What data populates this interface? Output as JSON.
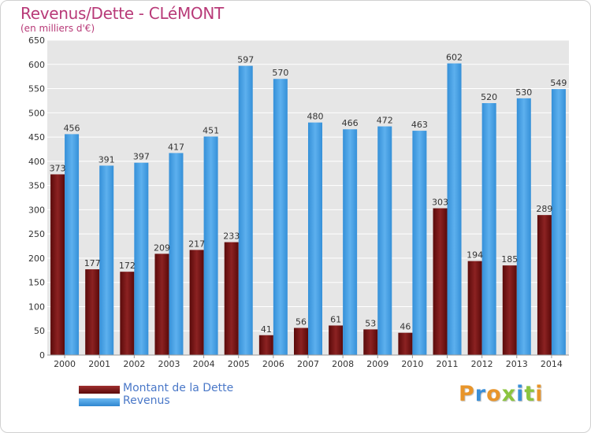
{
  "chart_data": {
    "type": "bar",
    "title": "Revenus/Dette - CLéMONT",
    "subtitle": "(en milliers d'€)",
    "xlabel": "",
    "ylabel": "",
    "ylim": [
      0,
      650
    ],
    "yticks": [
      0,
      50,
      100,
      150,
      200,
      250,
      300,
      350,
      400,
      450,
      500,
      550,
      600,
      650
    ],
    "grid": true,
    "legend_position": "bottom-left",
    "categories": [
      "2000",
      "2001",
      "2002",
      "2003",
      "2004",
      "2005",
      "2006",
      "2007",
      "2008",
      "2009",
      "2010",
      "2011",
      "2012",
      "2013",
      "2014"
    ],
    "series": [
      {
        "name": "Montant de la Dette",
        "color": "#7a1414",
        "values": [
          373,
          177,
          172,
          209,
          217,
          233,
          41,
          56,
          61,
          53,
          46,
          303,
          194,
          185,
          289
        ]
      },
      {
        "name": "Revenus",
        "color": "#3f9ae0",
        "values": [
          456,
          391,
          397,
          417,
          451,
          597,
          570,
          480,
          466,
          472,
          463,
          602,
          520,
          530,
          549
        ]
      }
    ]
  },
  "brand": {
    "letters": [
      "P",
      "r",
      "o",
      "x",
      "i",
      "t",
      "i"
    ],
    "colors": [
      "#e8952a",
      "#3a8fd8",
      "#e8952a",
      "#8bc43f",
      "#3a8fd8",
      "#8bc43f",
      "#e8952a"
    ]
  }
}
